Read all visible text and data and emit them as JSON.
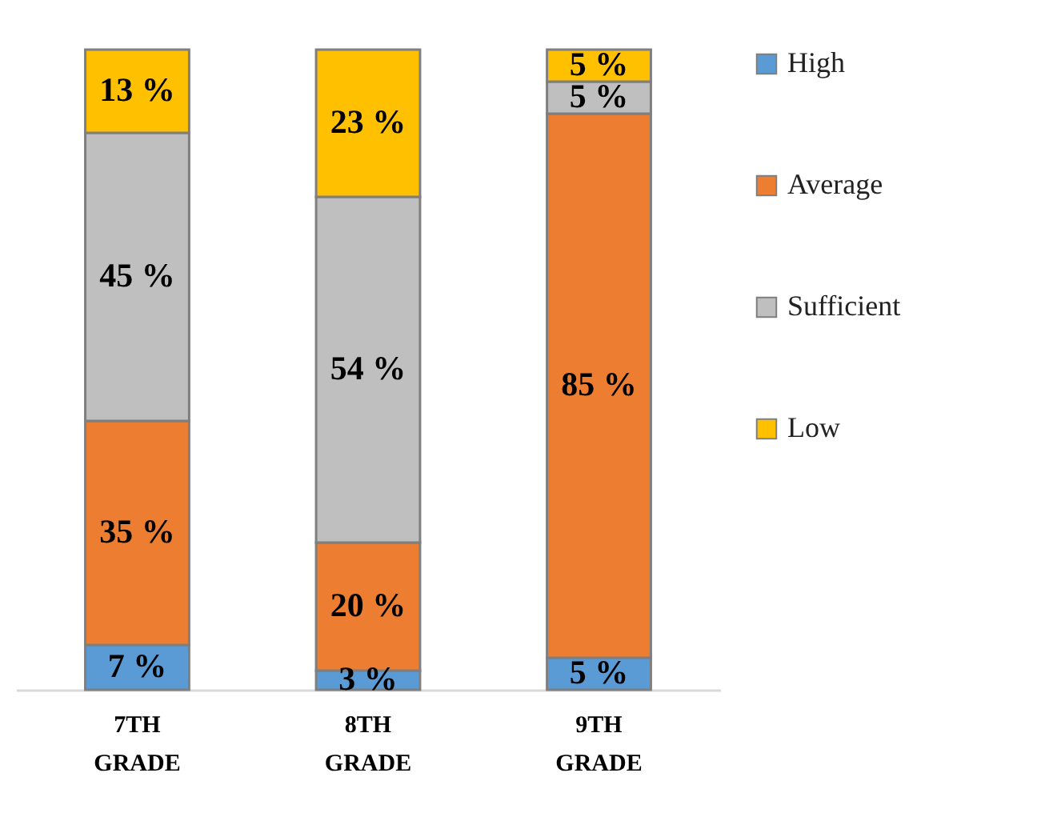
{
  "chart_data": {
    "type": "bar",
    "stacked": true,
    "categories": [
      "7TH GRADE",
      "8TH GRADE",
      "9TH GRADE"
    ],
    "legend": "right",
    "series": [
      {
        "name": "High",
        "color": "#5b9bd5",
        "values": [
          7,
          3,
          5
        ],
        "value_labels": [
          "7 %",
          "3 %",
          "5 %"
        ]
      },
      {
        "name": "Average",
        "color": "#ed7d31",
        "values": [
          35,
          20,
          85
        ],
        "value_labels": [
          "35 %",
          "20 %",
          "85 %"
        ]
      },
      {
        "name": "Sufficient",
        "color": "#bfbfbf",
        "values": [
          45,
          54,
          5
        ],
        "value_labels": [
          "45 %",
          "54 %",
          "5 %"
        ]
      },
      {
        "name": "Low",
        "color": "#ffc000",
        "values": [
          13,
          23,
          5
        ],
        "value_labels": [
          "13 %",
          "23 %",
          "5 %"
        ]
      }
    ]
  }
}
